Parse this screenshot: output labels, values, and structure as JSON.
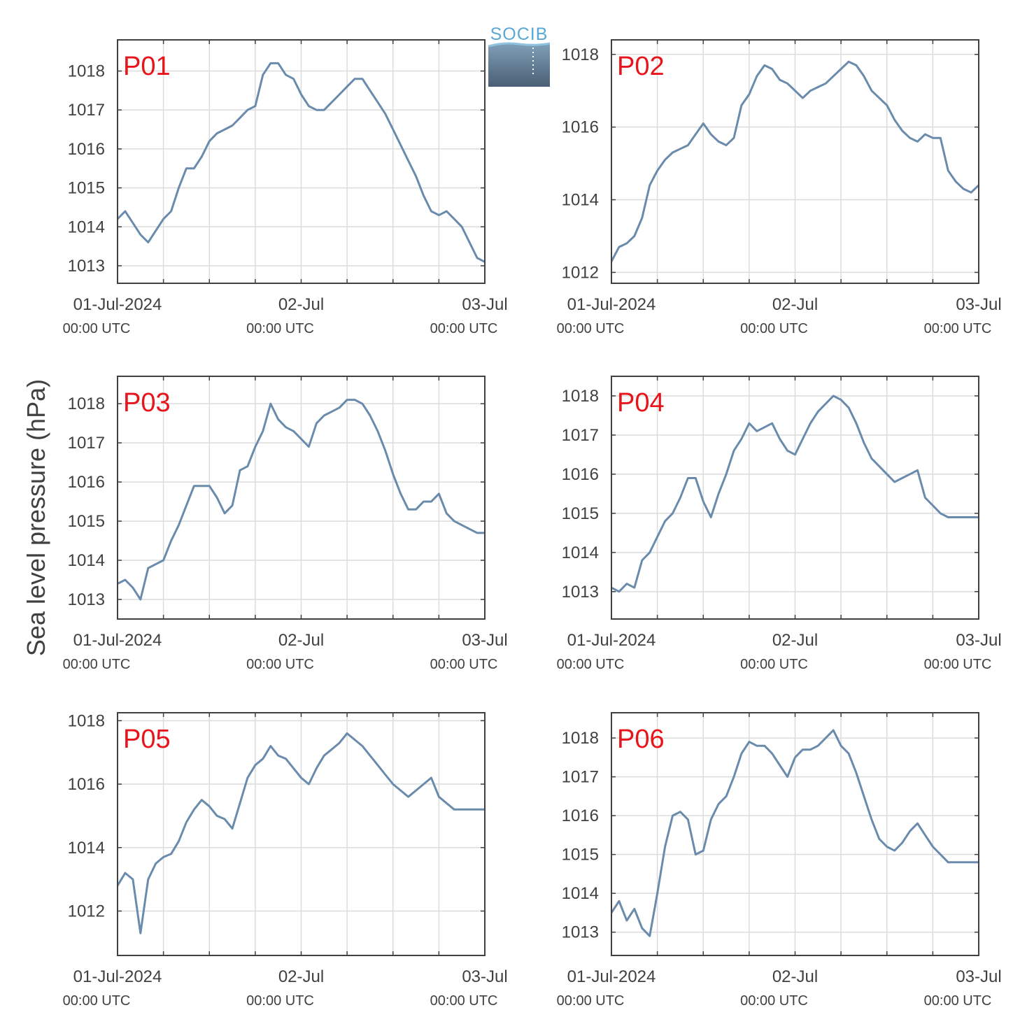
{
  "figure": {
    "ylabel": "Sea level pressure (hPa)",
    "logo_text": "SOCIB",
    "colors": {
      "line": "#6a8bac",
      "panel_label": "#e8141c",
      "axis": "#404040",
      "grid": "#dcdcdc"
    }
  },
  "chart_data": [
    {
      "type": "line",
      "label": "P01",
      "xticks": [
        {
          "top": "01-Jul-2024",
          "bottom": "00:00 UTC"
        },
        {
          "top": "02-Jul",
          "bottom": "00:00 UTC"
        },
        {
          "top": "03-Jul",
          "bottom": "00:00 UTC"
        }
      ],
      "yticks": [
        1013,
        1014,
        1015,
        1016,
        1017,
        1018
      ],
      "ylim": [
        1012.55,
        1018.8
      ],
      "x": [
        0,
        1,
        2,
        3,
        4,
        5,
        6,
        7,
        8,
        9,
        10,
        11,
        12,
        13,
        14,
        15,
        16,
        17,
        18,
        19,
        20,
        21,
        22,
        23,
        24,
        25,
        26,
        27,
        28,
        29,
        30,
        31,
        32,
        33,
        34,
        35,
        36,
        37,
        38,
        39,
        40,
        41,
        42,
        43,
        44,
        45,
        46,
        47,
        48
      ],
      "y": [
        1014.2,
        1014.4,
        1014.1,
        1013.8,
        1013.6,
        1013.9,
        1014.2,
        1014.4,
        1015.0,
        1015.5,
        1015.5,
        1015.8,
        1016.2,
        1016.4,
        1016.5,
        1016.6,
        1016.8,
        1017.0,
        1017.1,
        1017.9,
        1018.2,
        1018.2,
        1017.9,
        1017.8,
        1017.4,
        1017.1,
        1017.0,
        1017.0,
        1017.2,
        1017.4,
        1017.6,
        1017.8,
        1017.8,
        1017.5,
        1017.2,
        1016.9,
        1016.5,
        1016.1,
        1015.7,
        1015.3,
        1014.8,
        1014.4,
        1014.3,
        1014.4,
        1014.2,
        1014.0,
        1013.6,
        1013.2,
        1013.1
      ]
    },
    {
      "type": "line",
      "label": "P02",
      "xticks": [
        {
          "top": "01-Jul-2024",
          "bottom": "00:00 UTC"
        },
        {
          "top": "02-Jul",
          "bottom": "00:00 UTC"
        },
        {
          "top": "03-Jul",
          "bottom": "00:00 UTC"
        }
      ],
      "yticks": [
        1012,
        1014,
        1016,
        1018
      ],
      "ylim": [
        1011.7,
        1018.4
      ],
      "x": [
        0,
        1,
        2,
        3,
        4,
        5,
        6,
        7,
        8,
        9,
        10,
        11,
        12,
        13,
        14,
        15,
        16,
        17,
        18,
        19,
        20,
        21,
        22,
        23,
        24,
        25,
        26,
        27,
        28,
        29,
        30,
        31,
        32,
        33,
        34,
        35,
        36,
        37,
        38,
        39,
        40,
        41,
        42,
        43,
        44,
        45,
        46,
        47,
        48
      ],
      "y": [
        1012.3,
        1012.7,
        1012.8,
        1013.0,
        1013.5,
        1014.4,
        1014.8,
        1015.1,
        1015.3,
        1015.4,
        1015.5,
        1015.8,
        1016.1,
        1015.8,
        1015.6,
        1015.5,
        1015.7,
        1016.6,
        1016.9,
        1017.4,
        1017.7,
        1017.6,
        1017.3,
        1017.2,
        1017.0,
        1016.8,
        1017.0,
        1017.1,
        1017.2,
        1017.4,
        1017.6,
        1017.8,
        1017.7,
        1017.4,
        1017.0,
        1016.8,
        1016.6,
        1016.2,
        1015.9,
        1015.7,
        1015.6,
        1015.8,
        1015.7,
        1015.7,
        1014.8,
        1014.5,
        1014.3,
        1014.2,
        1014.4
      ]
    },
    {
      "type": "line",
      "label": "P03",
      "xticks": [
        {
          "top": "01-Jul-2024",
          "bottom": "00:00 UTC"
        },
        {
          "top": "02-Jul",
          "bottom": "00:00 UTC"
        },
        {
          "top": "03-Jul",
          "bottom": "00:00 UTC"
        }
      ],
      "yticks": [
        1013,
        1014,
        1015,
        1016,
        1017,
        1018
      ],
      "ylim": [
        1012.5,
        1018.7
      ],
      "x": [
        0,
        1,
        2,
        3,
        4,
        5,
        6,
        7,
        8,
        9,
        10,
        11,
        12,
        13,
        14,
        15,
        16,
        17,
        18,
        19,
        20,
        21,
        22,
        23,
        24,
        25,
        26,
        27,
        28,
        29,
        30,
        31,
        32,
        33,
        34,
        35,
        36,
        37,
        38,
        39,
        40,
        41,
        42,
        43,
        44,
        45,
        46,
        47,
        48
      ],
      "y": [
        1013.4,
        1013.5,
        1013.3,
        1013.0,
        1013.8,
        1013.9,
        1014.0,
        1014.5,
        1014.9,
        1015.4,
        1015.9,
        1015.9,
        1015.9,
        1015.6,
        1015.2,
        1015.4,
        1016.3,
        1016.4,
        1016.9,
        1017.3,
        1018.0,
        1017.6,
        1017.4,
        1017.3,
        1017.1,
        1016.9,
        1017.5,
        1017.7,
        1017.8,
        1017.9,
        1018.1,
        1018.1,
        1018.0,
        1017.7,
        1017.3,
        1016.8,
        1016.2,
        1015.7,
        1015.3,
        1015.3,
        1015.5,
        1015.5,
        1015.7,
        1015.2,
        1015.0,
        1014.9,
        1014.8,
        1014.7,
        1014.7
      ]
    },
    {
      "type": "line",
      "label": "P04",
      "xticks": [
        {
          "top": "01-Jul-2024",
          "bottom": "00:00 UTC"
        },
        {
          "top": "02-Jul",
          "bottom": "00:00 UTC"
        },
        {
          "top": "03-Jul",
          "bottom": "00:00 UTC"
        }
      ],
      "yticks": [
        1013,
        1014,
        1015,
        1016,
        1017,
        1018
      ],
      "ylim": [
        1012.3,
        1018.5
      ],
      "x": [
        0,
        1,
        2,
        3,
        4,
        5,
        6,
        7,
        8,
        9,
        10,
        11,
        12,
        13,
        14,
        15,
        16,
        17,
        18,
        19,
        20,
        21,
        22,
        23,
        24,
        25,
        26,
        27,
        28,
        29,
        30,
        31,
        32,
        33,
        34,
        35,
        36,
        37,
        38,
        39,
        40,
        41,
        42,
        43,
        44,
        45,
        46,
        47,
        48
      ],
      "y": [
        1013.1,
        1013.0,
        1013.2,
        1013.1,
        1013.8,
        1014.0,
        1014.4,
        1014.8,
        1015.0,
        1015.4,
        1015.9,
        1015.9,
        1015.3,
        1014.9,
        1015.5,
        1016.0,
        1016.6,
        1016.9,
        1017.3,
        1017.1,
        1017.2,
        1017.3,
        1016.9,
        1016.6,
        1016.5,
        1016.9,
        1017.3,
        1017.6,
        1017.8,
        1018.0,
        1017.9,
        1017.7,
        1017.3,
        1016.8,
        1016.4,
        1016.2,
        1016.0,
        1015.8,
        1015.9,
        1016.0,
        1016.1,
        1015.4,
        1015.2,
        1015.0,
        1014.9,
        1014.9,
        1014.9,
        1014.9,
        1014.9
      ]
    },
    {
      "type": "line",
      "label": "P05",
      "xticks": [
        {
          "top": "01-Jul-2024",
          "bottom": "00:00 UTC"
        },
        {
          "top": "02-Jul",
          "bottom": "00:00 UTC"
        },
        {
          "top": "03-Jul",
          "bottom": "00:00 UTC"
        }
      ],
      "yticks": [
        1012,
        1014,
        1016,
        1018
      ],
      "ylim": [
        1010.6,
        1018.25
      ],
      "x": [
        0,
        1,
        2,
        3,
        4,
        5,
        6,
        7,
        8,
        9,
        10,
        11,
        12,
        13,
        14,
        15,
        16,
        17,
        18,
        19,
        20,
        21,
        22,
        23,
        24,
        25,
        26,
        27,
        28,
        29,
        30,
        31,
        32,
        33,
        34,
        35,
        36,
        37,
        38,
        39,
        40,
        41,
        42,
        43,
        44,
        45,
        46,
        47,
        48
      ],
      "y": [
        1012.8,
        1013.2,
        1013.0,
        1011.3,
        1013.0,
        1013.5,
        1013.7,
        1013.8,
        1014.2,
        1014.8,
        1015.2,
        1015.5,
        1015.3,
        1015.0,
        1014.9,
        1014.6,
        1015.4,
        1016.2,
        1016.6,
        1016.8,
        1017.2,
        1016.9,
        1016.8,
        1016.5,
        1016.2,
        1016.0,
        1016.5,
        1016.9,
        1017.1,
        1017.3,
        1017.6,
        1017.4,
        1017.2,
        1016.9,
        1016.6,
        1016.3,
        1016.0,
        1015.8,
        1015.6,
        1015.8,
        1016.0,
        1016.2,
        1015.6,
        1015.4,
        1015.2,
        1015.2,
        1015.2,
        1015.2,
        1015.2
      ]
    },
    {
      "type": "line",
      "label": "P06",
      "xticks": [
        {
          "top": "01-Jul-2024",
          "bottom": "00:00 UTC"
        },
        {
          "top": "02-Jul",
          "bottom": "00:00 UTC"
        },
        {
          "top": "03-Jul",
          "bottom": "00:00 UTC"
        }
      ],
      "yticks": [
        1013,
        1014,
        1015,
        1016,
        1017,
        1018
      ],
      "ylim": [
        1012.4,
        1018.65
      ],
      "x": [
        0,
        1,
        2,
        3,
        4,
        5,
        6,
        7,
        8,
        9,
        10,
        11,
        12,
        13,
        14,
        15,
        16,
        17,
        18,
        19,
        20,
        21,
        22,
        23,
        24,
        25,
        26,
        27,
        28,
        29,
        30,
        31,
        32,
        33,
        34,
        35,
        36,
        37,
        38,
        39,
        40,
        41,
        42,
        43,
        44,
        45,
        46,
        47,
        48
      ],
      "y": [
        1013.5,
        1013.8,
        1013.3,
        1013.6,
        1013.1,
        1012.9,
        1014.0,
        1015.2,
        1016.0,
        1016.1,
        1015.9,
        1015.0,
        1015.1,
        1015.9,
        1016.3,
        1016.5,
        1017.0,
        1017.6,
        1017.9,
        1017.8,
        1017.8,
        1017.6,
        1017.3,
        1017.0,
        1017.5,
        1017.7,
        1017.7,
        1017.8,
        1018.0,
        1018.2,
        1017.8,
        1017.6,
        1017.1,
        1016.5,
        1015.9,
        1015.4,
        1015.2,
        1015.1,
        1015.3,
        1015.6,
        1015.8,
        1015.5,
        1015.2,
        1015.0,
        1014.8,
        1014.8,
        1014.8,
        1014.8,
        1014.8
      ]
    }
  ]
}
